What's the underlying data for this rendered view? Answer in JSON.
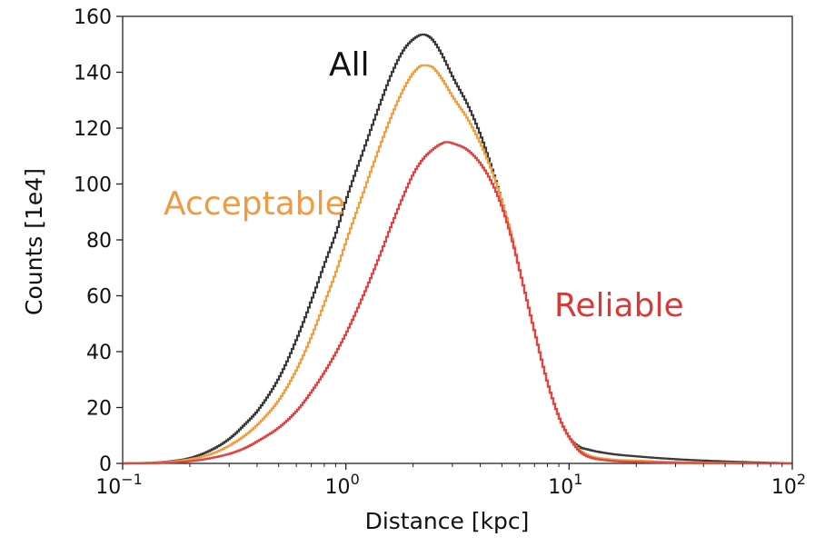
{
  "chart_data": {
    "type": "line",
    "title": "",
    "xlabel": "Distance [kpc]",
    "ylabel": "Counts [1e4]",
    "x_scale": "log",
    "xlim": [
      0.1,
      100
    ],
    "ylim": [
      0,
      160
    ],
    "grid": false,
    "legend": "inline labels",
    "x_ticks": [
      {
        "value": 0.1,
        "base": "10",
        "exp": "−1"
      },
      {
        "value": 1,
        "base": "10",
        "exp": "0"
      },
      {
        "value": 10,
        "base": "10",
        "exp": "1"
      },
      {
        "value": 100,
        "base": "10",
        "exp": "2"
      }
    ],
    "y_ticks": [
      0,
      20,
      40,
      60,
      80,
      100,
      120,
      140,
      160
    ],
    "series": [
      {
        "name": "All",
        "color": "#3a3a3a",
        "x": [
          0.1,
          0.15,
          0.2,
          0.25,
          0.3,
          0.35,
          0.4,
          0.5,
          0.6,
          0.7,
          0.8,
          0.9,
          1.0,
          1.2,
          1.4,
          1.6,
          1.8,
          2.0,
          2.2,
          2.4,
          2.6,
          2.8,
          3.0,
          3.5,
          4.0,
          4.5,
          5.0,
          5.5,
          6.0,
          7.0,
          8.0,
          9.0,
          10.0,
          11.0,
          12.0,
          15.0,
          20.0,
          30.0,
          50.0,
          100.0
        ],
        "values": [
          0,
          0.5,
          2,
          5,
          9,
          14,
          19,
          31,
          45,
          59,
          72,
          83,
          95,
          113,
          128,
          140,
          148,
          152,
          153.5,
          152,
          148,
          143,
          138,
          128,
          117,
          105,
          93,
          81,
          68,
          46,
          28,
          16,
          9,
          6,
          5,
          3.5,
          2.5,
          1.5,
          0.7,
          0
        ]
      },
      {
        "name": "Acceptable",
        "color": "#f0a040",
        "x": [
          0.1,
          0.15,
          0.2,
          0.25,
          0.3,
          0.35,
          0.4,
          0.5,
          0.6,
          0.7,
          0.8,
          0.9,
          1.0,
          1.2,
          1.4,
          1.6,
          1.8,
          2.0,
          2.2,
          2.4,
          2.6,
          2.8,
          3.0,
          3.5,
          4.0,
          4.5,
          5.0,
          5.5,
          6.0,
          7.0,
          8.0,
          9.0,
          10.0,
          11.0,
          12.0,
          15.0,
          20.0,
          30.0,
          50.0,
          100.0
        ],
        "values": [
          0,
          0.4,
          1.5,
          3.5,
          6.5,
          10,
          14,
          23,
          34,
          46,
          58,
          69,
          80,
          98,
          113,
          125,
          134,
          140,
          142.5,
          142,
          139,
          135,
          131,
          123,
          114,
          104,
          93,
          81,
          68,
          46,
          28,
          16,
          9,
          5,
          3,
          1.5,
          1,
          0.5,
          0.2,
          0
        ]
      },
      {
        "name": "Reliable",
        "color": "#e04545",
        "x": [
          0.1,
          0.15,
          0.2,
          0.25,
          0.3,
          0.35,
          0.4,
          0.5,
          0.6,
          0.7,
          0.8,
          0.9,
          1.0,
          1.2,
          1.4,
          1.6,
          1.8,
          2.0,
          2.2,
          2.4,
          2.6,
          2.8,
          3.0,
          3.5,
          4.0,
          4.5,
          5.0,
          5.5,
          6.0,
          7.0,
          8.0,
          9.0,
          10.0,
          11.0,
          12.0,
          15.0,
          20.0,
          30.0,
          50.0,
          100.0
        ],
        "values": [
          0,
          0.2,
          0.8,
          2,
          3.5,
          5.5,
          8,
          13,
          19,
          26,
          33,
          40,
          47,
          61,
          74,
          86,
          96,
          104,
          109,
          112,
          114,
          115,
          114.5,
          112,
          107,
          100,
          91,
          80,
          68,
          46,
          28,
          16,
          9,
          4.5,
          2.5,
          1,
          0.5,
          0.2,
          0.1,
          0
        ]
      }
    ]
  }
}
